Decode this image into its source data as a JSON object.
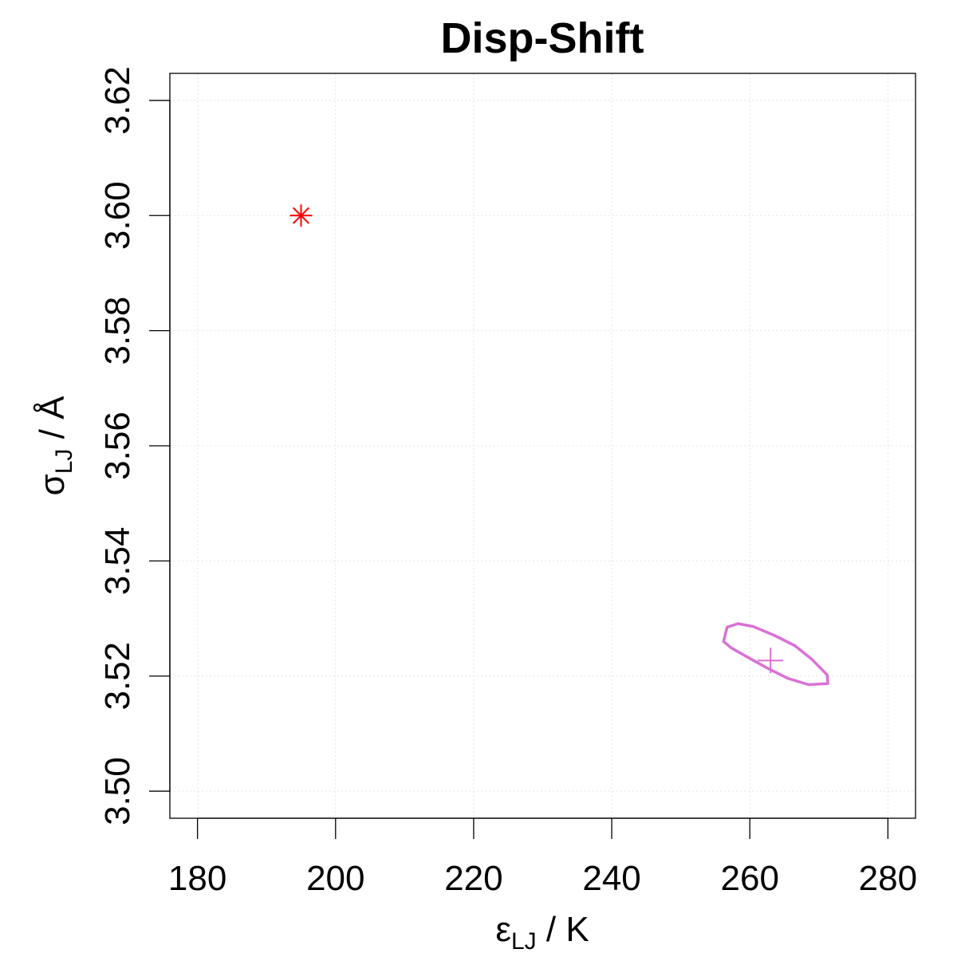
{
  "chart_data": {
    "type": "scatter",
    "title": "Disp-Shift",
    "xlabel": {
      "symbol": "ε",
      "subscript": "LJ",
      "unit": " / K"
    },
    "ylabel": {
      "symbol": "σ",
      "subscript": "LJ",
      "unit": " / Å"
    },
    "xlim": [
      176,
      284
    ],
    "ylim": [
      3.4953,
      3.6247
    ],
    "x_ticks": [
      180,
      200,
      220,
      240,
      260,
      280
    ],
    "x_tick_labels": [
      "180",
      "200",
      "220",
      "240",
      "260",
      "280"
    ],
    "y_ticks": [
      3.5,
      3.52,
      3.54,
      3.56,
      3.58,
      3.6,
      3.62
    ],
    "y_tick_labels": [
      "3.50",
      "3.52",
      "3.54",
      "3.56",
      "3.58",
      "3.60",
      "3.62"
    ],
    "grid": true,
    "series": [
      {
        "marker": "asterisk",
        "color": "#ff0000",
        "points": [
          [
            195.0,
            3.6
          ]
        ]
      },
      {
        "marker": "plus",
        "color": "#da70d6",
        "points": [
          [
            263.0,
            3.5227
          ]
        ]
      },
      {
        "marker": "contour",
        "color": "#da70d6",
        "points": [
          [
            256.2,
            3.526
          ],
          [
            256.7,
            3.5285
          ],
          [
            258.3,
            3.5291
          ],
          [
            260.5,
            3.5286
          ],
          [
            263.5,
            3.5271
          ],
          [
            266.5,
            3.5253
          ],
          [
            269.0,
            3.5229
          ],
          [
            271.2,
            3.5202
          ],
          [
            271.3,
            3.5187
          ],
          [
            268.5,
            3.5185
          ],
          [
            265.5,
            3.5196
          ],
          [
            262.5,
            3.5214
          ],
          [
            259.5,
            3.5234
          ],
          [
            257.3,
            3.5249
          ],
          [
            256.2,
            3.526
          ]
        ]
      }
    ]
  }
}
